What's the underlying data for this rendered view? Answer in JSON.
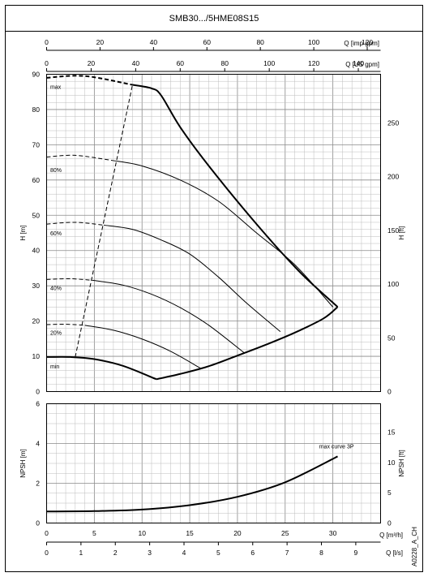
{
  "title": "SMB30.../5HME08S15",
  "side_code": "A0228_A_CH",
  "chart_data": [
    {
      "type": "line",
      "panel": "head",
      "x_axis_bottom": {
        "label": "",
        "range": [
          0,
          35
        ],
        "unit": "m³/h"
      },
      "x_axis_top_imp": {
        "label": "Q [imp gpm]",
        "range": [
          0,
          125
        ],
        "ticks": [
          0,
          20,
          40,
          60,
          80,
          100,
          120
        ]
      },
      "x_axis_top_us": {
        "label": "Q [US gpm]",
        "range": [
          0,
          150
        ],
        "ticks": [
          0,
          20,
          40,
          60,
          80,
          100,
          120,
          140
        ]
      },
      "y_axis_left": {
        "label": "H [m]",
        "range": [
          0,
          90
        ],
        "ticks": [
          0,
          10,
          20,
          30,
          40,
          50,
          60,
          70,
          80,
          90
        ]
      },
      "y_axis_right": {
        "label": "H [ft]",
        "ticks": [
          0,
          50,
          100,
          150,
          200,
          250
        ]
      },
      "grid": true,
      "series": [
        {
          "name": "max",
          "segments": [
            {
              "style": "dashed",
              "x": [
                0,
                4,
                9
              ],
              "y": [
                89,
                89.5,
                87
              ]
            },
            {
              "style": "solid",
              "x": [
                9,
                11,
                12,
                14,
                17,
                22,
                26.5,
                30.5
              ],
              "y": [
                87,
                86,
                84,
                75,
                64,
                47.5,
                34,
                24
              ]
            }
          ]
        },
        {
          "name": "80%",
          "segments": [
            {
              "style": "dashed",
              "x": [
                0,
                3,
                7
              ],
              "y": [
                66.5,
                67,
                65.5
              ]
            },
            {
              "style": "solid",
              "x": [
                7,
                10,
                14,
                18,
                22,
                26,
                30
              ],
              "y": [
                65.5,
                64,
                60,
                54,
                45,
                36,
                24
              ]
            }
          ]
        },
        {
          "name": "60%",
          "segments": [
            {
              "style": "dashed",
              "x": [
                0,
                3,
                6
              ],
              "y": [
                47.5,
                48,
                47.2
              ]
            },
            {
              "style": "solid",
              "x": [
                6,
                9,
                12,
                15,
                18,
                21,
                24.5
              ],
              "y": [
                47.2,
                46,
                43,
                39,
                32.5,
                25,
                17
              ]
            }
          ]
        },
        {
          "name": "40%",
          "segments": [
            {
              "style": "dashed",
              "x": [
                0,
                2.5,
                5
              ],
              "y": [
                31.8,
                32,
                31.5
              ]
            },
            {
              "style": "solid",
              "x": [
                5,
                8,
                11,
                14,
                17,
                20.7
              ],
              "y": [
                31.5,
                30.2,
                27.6,
                23.8,
                18.8,
                11
              ]
            }
          ]
        },
        {
          "name": "20%",
          "segments": [
            {
              "style": "dashed",
              "x": [
                0,
                2,
                4
              ],
              "y": [
                19,
                19.1,
                18.8
              ]
            },
            {
              "style": "solid",
              "x": [
                4,
                7,
                10,
                13,
                16.2
              ],
              "y": [
                18.8,
                17.4,
                14.9,
                11.4,
                6.5
              ]
            }
          ]
        },
        {
          "name": "min",
          "segments": [
            {
              "style": "solid",
              "x": [
                0,
                2.5,
                5,
                8,
                11.5
              ],
              "y": [
                9.8,
                9.8,
                9.2,
                7.3,
                3.5
              ]
            }
          ]
        },
        {
          "name": "",
          "segments": [
            {
              "style": "solid",
              "x": [
                11.5,
                14,
                17,
                20,
                23,
                26,
                29,
                30.5
              ],
              "y": [
                3.5,
                5,
                7.2,
                10.2,
                13.3,
                16.7,
                20.7,
                24
              ]
            }
          ]
        },
        {
          "name": "",
          "segments": [
            {
              "style": "dashed",
              "x": [
                3,
                9
              ],
              "y": [
                9.8,
                87
              ]
            }
          ]
        }
      ],
      "labels": [
        "max",
        "80%",
        "60%",
        "40%",
        "20%",
        "min"
      ]
    },
    {
      "type": "line",
      "panel": "npsh",
      "x_axis": {
        "label": "Q [m³/h]",
        "range": [
          0,
          35
        ],
        "ticks": [
          0,
          5,
          10,
          15,
          20,
          25,
          30
        ]
      },
      "x_axis_bottom": {
        "label": "Q [l/s]",
        "range": [
          0,
          9.72
        ],
        "ticks": [
          0,
          1,
          2,
          3,
          4,
          5,
          6,
          7,
          8,
          9
        ]
      },
      "y_axis_left": {
        "label": "NPSH [m]",
        "range": [
          0,
          6
        ],
        "ticks": [
          0,
          2,
          4,
          6
        ]
      },
      "y_axis_right": {
        "label": "NPSH [ft]",
        "ticks": [
          0,
          5,
          10,
          15
        ]
      },
      "grid": true,
      "series": [
        {
          "name": "max curve 3P",
          "x": [
            0,
            5,
            10,
            15,
            20,
            25,
            30.5
          ],
          "y": [
            0.58,
            0.6,
            0.68,
            0.9,
            1.32,
            2.05,
            3.35
          ]
        }
      ]
    }
  ]
}
